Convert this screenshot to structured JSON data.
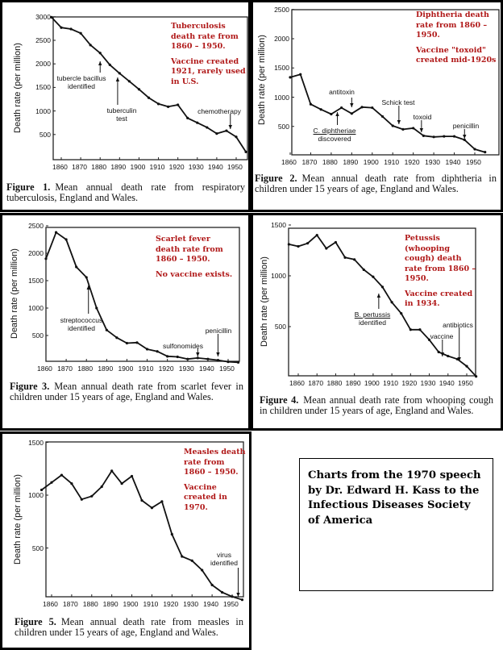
{
  "chart_data": [
    {
      "type": "line",
      "id": "c1",
      "title": "Figure 1.",
      "caption": "Mean annual death rate from respiratory tuberculosis, England and Wales.",
      "ylabel": "Death rate (per million)",
      "xlabel": "",
      "xlim": [
        1855,
        1955
      ],
      "ylim": [
        0,
        3000
      ],
      "x_ticks": [
        1860,
        1870,
        1880,
        1890,
        1900,
        1910,
        1920,
        1930,
        1940,
        1950
      ],
      "y_ticks": [
        500,
        1000,
        1500,
        2000,
        2500,
        3000
      ],
      "x": [
        1855,
        1860,
        1865,
        1870,
        1875,
        1880,
        1885,
        1890,
        1895,
        1900,
        1905,
        1910,
        1915,
        1920,
        1925,
        1930,
        1935,
        1940,
        1945,
        1950,
        1955
      ],
      "values": [
        2990,
        2770,
        2740,
        2650,
        2400,
        2230,
        1980,
        1800,
        1630,
        1460,
        1280,
        1150,
        1090,
        1130,
        850,
        750,
        650,
        520,
        580,
        450,
        130
      ],
      "notes": [
        "Tuberculosis death rate from 1860 – 1950.",
        "Vaccine created 1921, rarely used in U.S."
      ],
      "annotations": [
        {
          "lines": [
            "tubercle bacillus",
            "identified"
          ],
          "year": 1880
        },
        {
          "lines": [
            "tuberculin",
            "test"
          ],
          "year": 1889
        },
        {
          "lines": [
            "chemotherapy"
          ],
          "year": 1947
        }
      ]
    },
    {
      "type": "line",
      "id": "c2",
      "title": "Figure 2.",
      "caption": "Mean annual death rate from diphtheria in children under 15 years of age, England and Wales.",
      "ylabel": "Death rate (per million)",
      "xlabel": "",
      "xlim": [
        1855,
        1955
      ],
      "ylim": [
        0,
        2500
      ],
      "x_ticks": [
        1860,
        1870,
        1880,
        1890,
        1900,
        1910,
        1920,
        1930,
        1940,
        1950
      ],
      "y_ticks": [
        500,
        1000,
        1500,
        2000,
        2500
      ],
      "x": [
        1860,
        1865,
        1870,
        1875,
        1880,
        1885,
        1890,
        1895,
        1900,
        1905,
        1910,
        1915,
        1920,
        1925,
        1930,
        1935,
        1940,
        1945,
        1950,
        1955
      ],
      "values": [
        1340,
        1390,
        880,
        790,
        710,
        820,
        720,
        830,
        820,
        670,
        510,
        450,
        470,
        340,
        320,
        330,
        330,
        270,
        110,
        60
      ],
      "notes": [
        "Diphtheria death rate from 1860 – 1950.",
        "Vaccine \"toxoid\" created mid-1920s"
      ],
      "annotations": [
        {
          "lines": [
            "antitoxin"
          ],
          "year": 1890
        },
        {
          "lines": [
            "C. diphtheriae",
            "discovered"
          ],
          "year": 1883
        },
        {
          "lines": [
            "Schick test"
          ],
          "year": 1913
        },
        {
          "lines": [
            "toxoid"
          ],
          "year": 1924
        },
        {
          "lines": [
            "penicillin"
          ],
          "year": 1945
        }
      ]
    },
    {
      "type": "line",
      "id": "c3",
      "title": "Figure 3.",
      "caption": "Mean annual death rate from scarlet fever in children under 15 years of age, England and Wales.",
      "ylabel": "Death rate (per million)",
      "xlabel": "",
      "xlim": [
        1860,
        1955
      ],
      "ylim": [
        0,
        2500
      ],
      "x_ticks": [
        1860,
        1870,
        1880,
        1890,
        1900,
        1910,
        1920,
        1930,
        1940,
        1950
      ],
      "y_ticks": [
        500,
        1000,
        1500,
        2000,
        2500
      ],
      "x": [
        1860,
        1865,
        1870,
        1875,
        1880,
        1885,
        1890,
        1895,
        1900,
        1905,
        1910,
        1915,
        1920,
        1925,
        1930,
        1935,
        1940,
        1945,
        1950,
        1955
      ],
      "values": [
        1900,
        2380,
        2250,
        1750,
        1560,
        1000,
        600,
        460,
        360,
        370,
        250,
        210,
        120,
        110,
        70,
        90,
        70,
        50,
        20,
        10
      ],
      "notes": [
        "Scarlet fever death rate from 1860 – 1950.",
        "No vaccine exists."
      ],
      "annotations": [
        {
          "lines": [
            "streptococcus",
            "identified"
          ],
          "year": 1881
        },
        {
          "lines": [
            "sulfonomides"
          ],
          "year": 1935
        },
        {
          "lines": [
            "penicillin"
          ],
          "year": 1945
        }
      ]
    },
    {
      "type": "line",
      "id": "c4",
      "title": "Figure 4.",
      "caption": "Mean annual death rate from whooping cough in children under 15 years of age, England and Wales.",
      "ylabel": "Death rate (per million)",
      "xlabel": "",
      "xlim": [
        1855,
        1955
      ],
      "ylim": [
        0,
        1500
      ],
      "x_ticks": [
        1860,
        1870,
        1880,
        1890,
        1900,
        1910,
        1920,
        1930,
        1940,
        1950
      ],
      "y_ticks": [
        500,
        1000,
        1500
      ],
      "x": [
        1855,
        1860,
        1865,
        1870,
        1875,
        1880,
        1885,
        1890,
        1895,
        1900,
        1905,
        1910,
        1915,
        1920,
        1925,
        1930,
        1935,
        1940,
        1945,
        1950,
        1955
      ],
      "values": [
        1310,
        1290,
        1320,
        1400,
        1270,
        1330,
        1180,
        1160,
        1060,
        990,
        890,
        740,
        630,
        470,
        470,
        370,
        250,
        210,
        180,
        110,
        10
      ],
      "notes": [
        "Petussis (whooping cough) death rate from 1860 – 1950.",
        "Vaccine created in 1934."
      ],
      "annotations": [
        {
          "lines": [
            "B. pertussis",
            "identified"
          ],
          "year": 1903
        },
        {
          "lines": [
            "vaccine"
          ],
          "year": 1937
        },
        {
          "lines": [
            "antibiotics"
          ],
          "year": 1946
        }
      ]
    },
    {
      "type": "line",
      "id": "c5",
      "title": "Figure 5.",
      "caption": "Mean annual death rate from measles in children under 15 years of age, England and Wales.",
      "ylabel": "Death rate (per million)",
      "xlabel": "",
      "xlim": [
        1855,
        1955
      ],
      "ylim": [
        0,
        1500
      ],
      "x_ticks": [
        1860,
        1870,
        1880,
        1890,
        1900,
        1910,
        1920,
        1930,
        1940,
        1950
      ],
      "y_ticks": [
        500,
        1000,
        1500
      ],
      "x": [
        1855,
        1860,
        1865,
        1870,
        1875,
        1880,
        1885,
        1890,
        1895,
        1900,
        1905,
        1910,
        1915,
        1920,
        1925,
        1930,
        1935,
        1940,
        1945,
        1950,
        1955
      ],
      "values": [
        1050,
        1120,
        1190,
        1110,
        960,
        990,
        1080,
        1230,
        1110,
        1180,
        950,
        880,
        940,
        630,
        420,
        380,
        290,
        150,
        80,
        40,
        10
      ],
      "notes": [
        "Measles death rate from 1860 – 1950.",
        "Vaccine created in 1970."
      ],
      "annotations": [
        {
          "lines": [
            "virus",
            "identified"
          ],
          "year": 1953
        }
      ]
    }
  ],
  "info_box": "Charts from the 1970 speech by Dr. Edward H. Kass to the Infectious Diseases Society of America",
  "colors": {
    "note": "#b01818",
    "line": "#111111",
    "frame": "#000000"
  }
}
